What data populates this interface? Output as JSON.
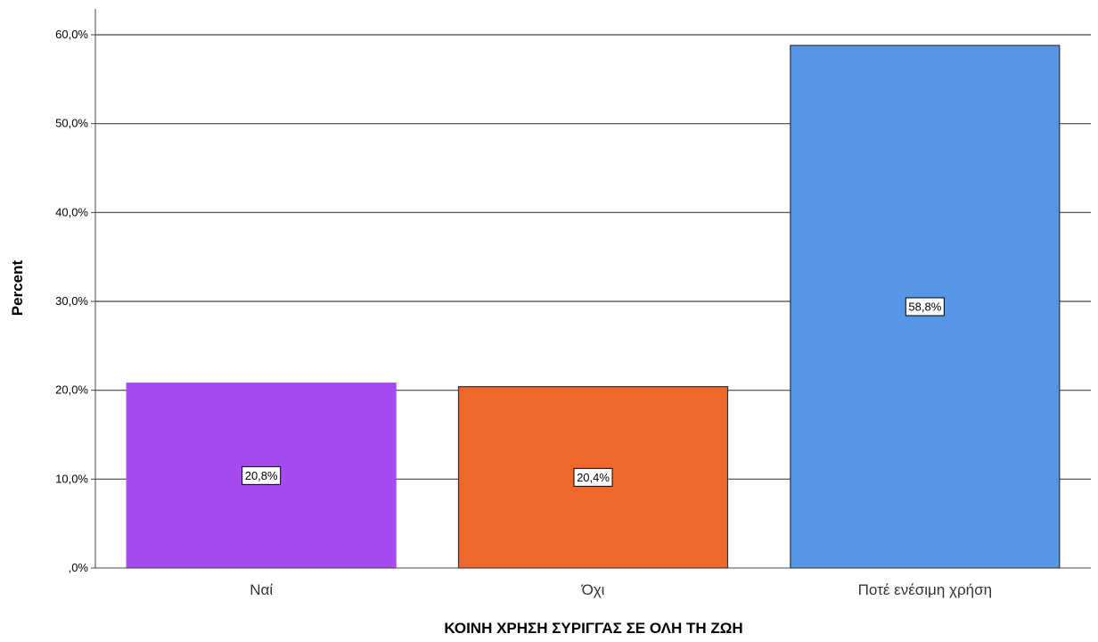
{
  "chart_data": {
    "type": "bar",
    "categories": [
      "Ναί",
      "Όχι",
      "Ποτέ ενέσιμη χρήση"
    ],
    "values": [
      20.8,
      20.4,
      58.8
    ],
    "data_labels": [
      "20,8%",
      "20,4%",
      "58,8%"
    ],
    "colors": [
      "#a64af2",
      "#f0672c",
      "#5596e6"
    ],
    "title": "",
    "xlabel": "ΚΟΙΝΗ ΧΡΗΣΗ ΣΥΡΙΓΓΑΣ ΣΕ ΟΛΗ ΤΗ ΖΩΗ",
    "ylabel": "Percent",
    "ylim": [
      0,
      60
    ],
    "yticks": [
      0,
      10,
      20,
      30,
      40,
      50,
      60
    ],
    "ytick_labels": [
      ",0%",
      "10,0%",
      "20,0%",
      "30,0%",
      "40,0%",
      "50,0%",
      "60,0%"
    ],
    "grid": true,
    "legend": "none"
  }
}
